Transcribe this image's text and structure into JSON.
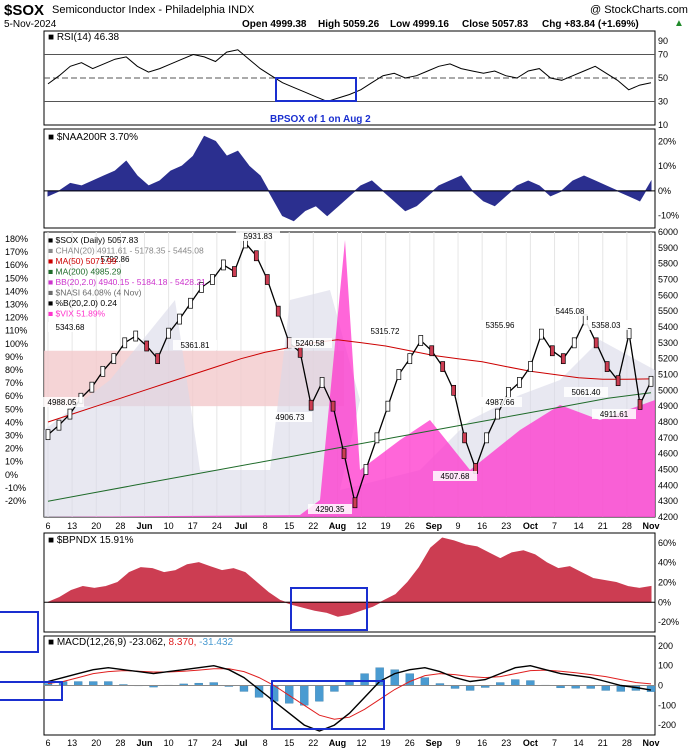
{
  "header": {
    "symbol": "$SOX",
    "name": "Semiconductor Index - Philadelphia INDX",
    "source": "@ StockCharts.com",
    "date": "5-Nov-2024",
    "open": "Open 4999.38",
    "high": "High 5059.26",
    "low": "Low 4999.16",
    "close": "Close 5057.83",
    "chg": "Chg +83.84 (+1.69%)"
  },
  "colors": {
    "navy": "#2b2f8f",
    "red_area": "#cc3d52",
    "magenta": "#ff33cc",
    "annotation": "#1a2fd0",
    "macd_hist": "#4a9bd1",
    "ma50": "#cc0000",
    "ma200": "#1f6b2a",
    "bb": "#cc33cc",
    "nasi": "#6b6b6b"
  },
  "panels": {
    "rsi": {
      "label": "RSI(14) 46.38",
      "annotation": "BPSOX of 1 on Aug 2"
    },
    "naa": {
      "label": "$NAA200R 3.70%"
    },
    "main": {
      "legend": [
        "$SOX (Daily) 5057.83",
        "CHAN(20) 4911.61 - 5178.35 - 5445.08",
        "MA(50) 5071.99",
        "MA(200) 4985.29",
        "BB(20,2.0) 4940.15 - 5184.18 - 5428.21",
        "$NASI 64.08% (4 Nov)",
        "%B(20,2.0) 0.24",
        "$VIX 51.89%"
      ],
      "price_labels": [
        "5931.83",
        "5792.86",
        "5343.68",
        "5361.81",
        "4988.05",
        "5240.58",
        "4906.73",
        "4290.35",
        "5315.72",
        "5355.96",
        "4507.68",
        "4987.66",
        "5445.08",
        "5358.03",
        "5061.40",
        "4911.61"
      ]
    },
    "bpndx": {
      "label": "$BPNDX 15.91%"
    },
    "macd": {
      "label_prefix": "MACD(12,26,9)",
      "v1": "-23.062,",
      "v2": "8.370,",
      "v3": "-31.432"
    }
  },
  "x_ticks": [
    "6",
    "13",
    "20",
    "28",
    "Jun",
    "10",
    "17",
    "24",
    "Jul",
    "8",
    "15",
    "22",
    "Aug",
    "12",
    "19",
    "26",
    "Sep",
    "9",
    "16",
    "23",
    "Oct",
    "7",
    "14",
    "21",
    "28",
    "Nov"
  ],
  "axes": {
    "rsi_ticks": [
      "70",
      "50",
      "30",
      "10"
    ],
    "rsi_top": "90",
    "naa_ticks": [
      "20%",
      "10%",
      "0%",
      "-10%"
    ],
    "price_ticks": [
      "6000",
      "5900",
      "5800",
      "5700",
      "5600",
      "5500",
      "5400",
      "5300",
      "5200",
      "5100",
      "5000",
      "4900",
      "4800",
      "4700",
      "4600",
      "4500",
      "4400",
      "4300",
      "4200"
    ],
    "pct_ticks": [
      "180%",
      "170%",
      "160%",
      "150%",
      "140%",
      "130%",
      "120%",
      "110%",
      "100%",
      "90%",
      "80%",
      "70%",
      "60%",
      "50%",
      "40%",
      "30%",
      "20%",
      "10%",
      "0%",
      "-10%",
      "-20%"
    ],
    "bp_ticks": [
      "60%",
      "40%",
      "20%",
      "0%",
      "-20%"
    ],
    "macd_ticks": [
      "200",
      "100",
      "0",
      "-100",
      "-200"
    ]
  },
  "chart_data": [
    {
      "type": "line",
      "title": "RSI(14) 46.38",
      "ylim": [
        10,
        90
      ],
      "series": [
        {
          "name": "RSI(14)",
          "values": [
            45,
            52,
            60,
            63,
            58,
            62,
            66,
            68,
            60,
            55,
            58,
            62,
            66,
            70,
            68,
            64,
            72,
            74,
            66,
            58,
            52,
            46,
            42,
            38,
            34,
            30,
            33,
            36,
            40,
            46,
            52,
            54,
            50,
            52,
            56,
            60,
            62,
            58,
            56,
            54,
            56,
            52,
            50,
            56,
            58,
            50,
            48,
            52,
            56,
            60,
            54,
            48,
            40,
            44,
            46
          ]
        }
      ]
    },
    {
      "type": "area",
      "title": "$NAA200R 3.70%",
      "ylim": [
        -15,
        25
      ],
      "series": [
        {
          "name": "$NAA200R",
          "values": [
            -2,
            0,
            3,
            2,
            4,
            6,
            8,
            12,
            6,
            2,
            4,
            8,
            10,
            14,
            22,
            20,
            14,
            16,
            10,
            6,
            -2,
            -10,
            -12,
            -8,
            -6,
            -10,
            -6,
            -2,
            2,
            4,
            0,
            -4,
            -8,
            -6,
            -2,
            2,
            4,
            6,
            0,
            -4,
            -6,
            -2,
            2,
            4,
            2,
            -2,
            0,
            4,
            6,
            4,
            2,
            0,
            -2,
            -4,
            3.7
          ]
        }
      ]
    },
    {
      "type": "line",
      "title": "$SOX (Daily) 5057.83",
      "ylim": [
        4200,
        6000
      ],
      "series": [
        {
          "name": "$SOX (Daily) 5057.83",
          "values": [
            4720,
            4780,
            4850,
            4950,
            5020,
            5120,
            5200,
            5300,
            5343,
            5280,
            5200,
            5361,
            5450,
            5550,
            5650,
            5700,
            5792,
            5750,
            5931,
            5850,
            5700,
            5500,
            5300,
            5240,
            4906,
            5050,
            4900,
            4600,
            4290,
            4500,
            4700,
            4900,
            5100,
            5200,
            5315,
            5250,
            5150,
            5000,
            4700,
            4507,
            4700,
            4850,
            4987,
            5050,
            5150,
            5355,
            5250,
            5200,
            5300,
            5445,
            5300,
            5150,
            5061,
            5358,
            4911,
            5057
          ]
        },
        {
          "name": "MA(50) 5071.99",
          "values": [
            4800,
            4850,
            4900,
            4950,
            5000,
            5050,
            5100,
            5150,
            5200,
            5240,
            5270,
            5300,
            5320,
            5300,
            5280,
            5250,
            5220,
            5200,
            5180,
            5150,
            5120,
            5100,
            5080,
            5070,
            5070,
            5072
          ]
        },
        {
          "name": "MA(200) 4985.29",
          "values": [
            4300,
            4350,
            4400,
            4450,
            4500,
            4550,
            4600,
            4650,
            4700,
            4750,
            4800,
            4850,
            4900,
            4950,
            4985
          ]
        }
      ]
    },
    {
      "type": "area",
      "title": "$BPNDX 15.91%",
      "ylim": [
        -30,
        70
      ],
      "series": [
        {
          "name": "$BPNDX",
          "values": [
            0,
            5,
            12,
            16,
            14,
            16,
            20,
            30,
            35,
            34,
            30,
            32,
            38,
            40,
            36,
            32,
            34,
            30,
            20,
            10,
            2,
            -2,
            -5,
            -8,
            -10,
            -14,
            -12,
            -8,
            -4,
            2,
            8,
            20,
            35,
            55,
            65,
            62,
            58,
            56,
            50,
            44,
            50,
            52,
            48,
            40,
            34,
            36,
            30,
            24,
            22,
            20,
            16,
            14,
            15.91
          ]
        }
      ]
    },
    {
      "type": "line",
      "title": "MACD(12,26,9) -23.062, 8.370, -31.432",
      "ylim": [
        -250,
        250
      ],
      "series": [
        {
          "name": "MACD",
          "values": [
            20,
            40,
            60,
            80,
            90,
            80,
            70,
            60,
            70,
            80,
            90,
            100,
            80,
            40,
            -20,
            -80,
            -140,
            -200,
            -230,
            -200,
            -140,
            -60,
            20,
            60,
            80,
            90,
            70,
            40,
            20,
            30,
            60,
            90,
            100,
            80,
            60,
            50,
            40,
            20,
            0,
            -10,
            -23
          ]
        },
        {
          "name": "Signal",
          "values": [
            10,
            20,
            40,
            60,
            70,
            75,
            72,
            68,
            68,
            72,
            78,
            85,
            85,
            70,
            40,
            0,
            -50,
            -100,
            -150,
            -170,
            -160,
            -120,
            -70,
            -20,
            20,
            50,
            60,
            55,
            45,
            40,
            45,
            60,
            75,
            78,
            72,
            64,
            55,
            45,
            30,
            15,
            8
          ]
        },
        {
          "name": "Histogram",
          "values": [
            10,
            20,
            20,
            20,
            20,
            5,
            -2,
            -8,
            2,
            8,
            12,
            15,
            -5,
            -30,
            -60,
            -80,
            -90,
            -100,
            -80,
            -30,
            20,
            60,
            90,
            80,
            60,
            40,
            10,
            -15,
            -25,
            -10,
            15,
            30,
            25,
            2,
            -12,
            -14,
            -15,
            -25,
            -30,
            -25,
            -31
          ]
        }
      ]
    }
  ]
}
